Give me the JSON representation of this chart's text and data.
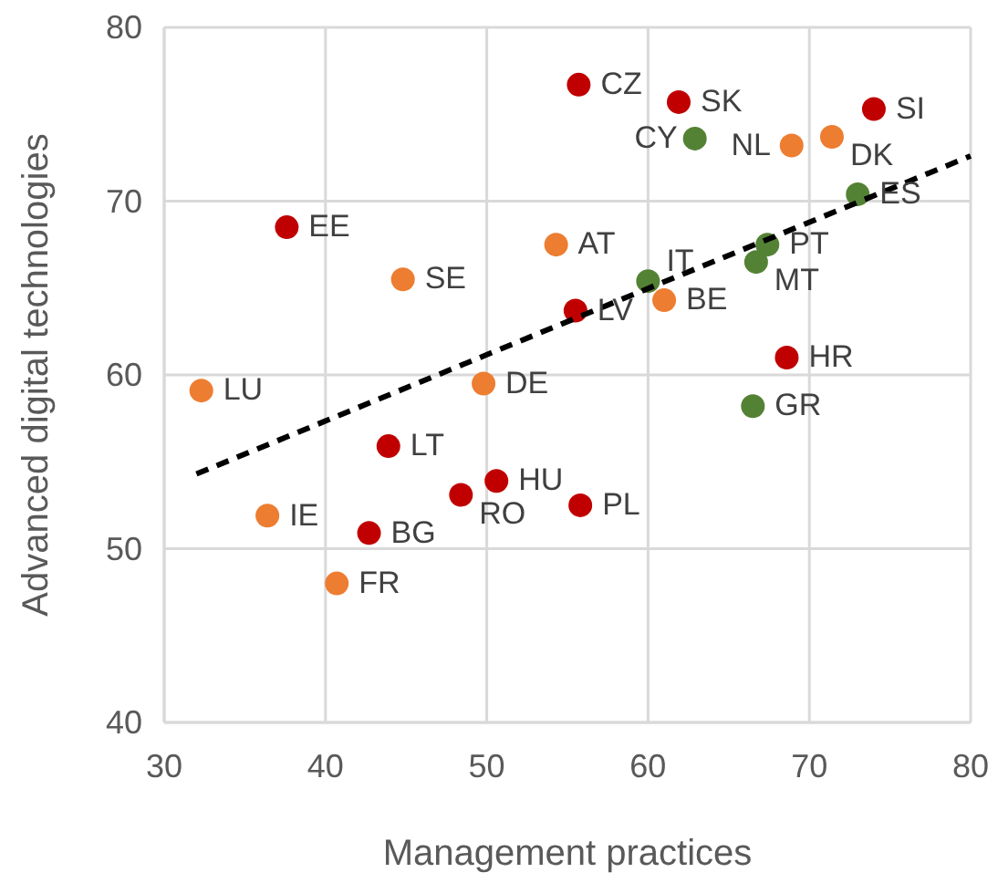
{
  "chart_data": {
    "type": "scatter",
    "xlabel": "Management practices",
    "ylabel": "Advanced digital technologies",
    "xlim": [
      30,
      80
    ],
    "ylim": [
      40,
      80
    ],
    "xticks": [
      30,
      40,
      50,
      60,
      70,
      80
    ],
    "yticks": [
      40,
      50,
      60,
      70,
      80
    ],
    "grid": true,
    "marker": "circle",
    "series": [
      {
        "color": "#c00000",
        "x": [
          55.7,
          61.9,
          74.0,
          37.6,
          55.5,
          68.6,
          43.9,
          50.6,
          48.4,
          55.8,
          42.7
        ],
        "values": [
          76.7,
          75.7,
          75.3,
          68.5,
          63.7,
          61.0,
          55.9,
          53.9,
          53.1,
          52.5,
          50.9
        ]
      },
      {
        "color": "#ed7d31",
        "x": [
          68.9,
          71.4,
          61.0,
          54.3,
          44.8,
          32.3,
          49.8,
          36.4,
          40.7
        ],
        "values": [
          73.2,
          73.7,
          64.3,
          67.5,
          65.5,
          59.1,
          59.5,
          51.9,
          48.0
        ]
      },
      {
        "color": "#548235",
        "x": [
          62.9,
          73.0,
          67.4,
          66.7,
          60.0,
          66.5
        ],
        "values": [
          73.6,
          70.4,
          67.5,
          66.5,
          65.4,
          58.2
        ]
      },
      {
        "type": "line",
        "color": "#000000",
        "line_style": "dashed",
        "marker": "none",
        "x": [
          32,
          80
        ],
        "values": [
          54.3,
          72.6
        ]
      }
    ],
    "annotations": [
      {
        "text": "CZ",
        "x": 55.7,
        "y": 76.7
      },
      {
        "text": "SK",
        "x": 61.9,
        "y": 75.7
      },
      {
        "text": "SI",
        "x": 74.0,
        "y": 75.3
      },
      {
        "text": "EE",
        "x": 37.6,
        "y": 68.5
      },
      {
        "text": "LV",
        "x": 55.5,
        "y": 63.7
      },
      {
        "text": "HR",
        "x": 68.6,
        "y": 61.0
      },
      {
        "text": "LT",
        "x": 43.9,
        "y": 55.9
      },
      {
        "text": "HU",
        "x": 50.6,
        "y": 53.9
      },
      {
        "text": "RO",
        "x": 48.4,
        "y": 53.1
      },
      {
        "text": "PL",
        "x": 55.8,
        "y": 52.5
      },
      {
        "text": "BG",
        "x": 42.7,
        "y": 50.9
      },
      {
        "text": "NL",
        "x": 68.9,
        "y": 73.2
      },
      {
        "text": "DK",
        "x": 71.4,
        "y": 73.7
      },
      {
        "text": "BE",
        "x": 61.0,
        "y": 64.3
      },
      {
        "text": "AT",
        "x": 54.3,
        "y": 67.5
      },
      {
        "text": "SE",
        "x": 44.8,
        "y": 65.5
      },
      {
        "text": "LU",
        "x": 32.3,
        "y": 59.1
      },
      {
        "text": "DE",
        "x": 49.8,
        "y": 59.5
      },
      {
        "text": "IE",
        "x": 36.4,
        "y": 51.9
      },
      {
        "text": "FR",
        "x": 40.7,
        "y": 48.0
      },
      {
        "text": "CY",
        "x": 62.9,
        "y": 73.6
      },
      {
        "text": "ES",
        "x": 73.0,
        "y": 70.4
      },
      {
        "text": "PT",
        "x": 67.4,
        "y": 67.5
      },
      {
        "text": "MT",
        "x": 66.7,
        "y": 66.5
      },
      {
        "text": "IT",
        "x": 60.0,
        "y": 65.4
      },
      {
        "text": "GR",
        "x": 66.5,
        "y": 58.2
      }
    ]
  }
}
